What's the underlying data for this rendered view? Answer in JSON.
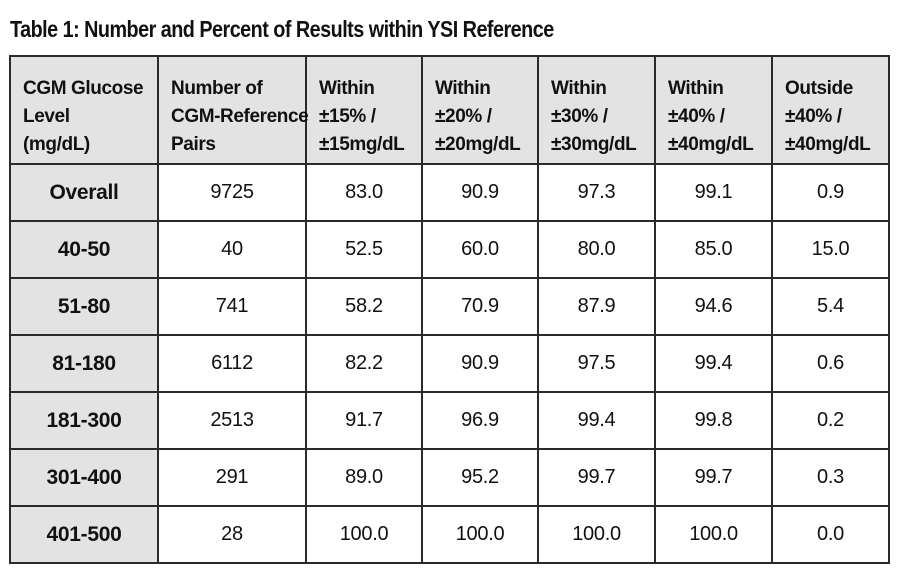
{
  "caption": "Table 1: Number and Percent of Results within YSI Reference",
  "header": [
    [
      "CGM Glucose",
      "Level",
      "(mg/dL)"
    ],
    [
      "Number of",
      "CGM-Reference",
      "Pairs"
    ],
    [
      "Within",
      "±15% /",
      "±15mg/dL"
    ],
    [
      "Within",
      "±20% /",
      "±20mg/dL"
    ],
    [
      "Within",
      "±30% /",
      "±30mg/dL"
    ],
    [
      "Within",
      "±40% /",
      "±40mg/dL"
    ],
    [
      "Outside",
      "±40% /",
      "±40mg/dL"
    ]
  ],
  "rows": [
    [
      "Overall",
      "9725",
      "83.0",
      "90.9",
      "97.3",
      "99.1",
      "0.9"
    ],
    [
      "40-50",
      "40",
      "52.5",
      "60.0",
      "80.0",
      "85.0",
      "15.0"
    ],
    [
      "51-80",
      "741",
      "58.2",
      "70.9",
      "87.9",
      "94.6",
      "5.4"
    ],
    [
      "81-180",
      "6112",
      "82.2",
      "90.9",
      "97.5",
      "99.4",
      "0.6"
    ],
    [
      "181-300",
      "2513",
      "91.7",
      "96.9",
      "99.4",
      "99.8",
      "0.2"
    ],
    [
      "301-400",
      "291",
      "89.0",
      "95.2",
      "99.7",
      "99.7",
      "0.3"
    ],
    [
      "401-500",
      "28",
      "100.0",
      "100.0",
      "100.0",
      "100.0",
      "0.0"
    ]
  ]
}
